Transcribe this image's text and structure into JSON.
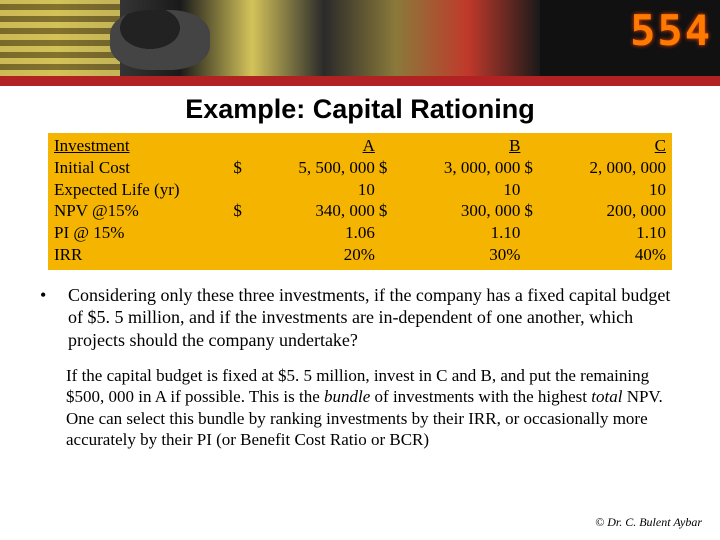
{
  "banner": {
    "digits": "554"
  },
  "title": "Example: Capital Rationing",
  "table": {
    "background_color": "#f4b400",
    "rows": [
      {
        "label": "Investment",
        "a_cur": "",
        "a": "A",
        "b_cur": "",
        "b": "B",
        "c_cur": "",
        "c": "C",
        "underline": true
      },
      {
        "label": "Initial Cost",
        "a_cur": "$",
        "a": "5, 500, 000",
        "b_cur": "$",
        "b": "3, 000, 000",
        "c_cur": "$",
        "c": "2, 000, 000",
        "underline": false
      },
      {
        "label": "Expected Life (yr)",
        "a_cur": "",
        "a": "10",
        "b_cur": "",
        "b": "10",
        "c_cur": "",
        "c": "10",
        "underline": false
      },
      {
        "label": "NPV @15%",
        "a_cur": "$",
        "a": "340, 000",
        "b_cur": "$",
        "b": "300, 000",
        "c_cur": "$",
        "c": "200, 000",
        "underline": false
      },
      {
        "label": "PI @ 15%",
        "a_cur": "",
        "a": "1.06",
        "b_cur": "",
        "b": "1.10",
        "c_cur": "",
        "c": "1.10",
        "underline": false
      },
      {
        "label": "IRR",
        "a_cur": "",
        "a": "20%",
        "b_cur": "",
        "b": "30%",
        "c_cur": "",
        "c": "40%",
        "underline": false
      }
    ]
  },
  "question": "Considering only these three investments, if the company has a fixed capital budget of $5. 5 million, and if the investments are in-dependent of one another, which projects should the company  undertake?",
  "answer_pre": "If the capital budget is fixed at $5. 5 million, invest in C and B, and put the remaining $500, 000 in A if possible.  This is the ",
  "answer_ital": "bundle",
  "answer_post": " of investments with the highest ",
  "answer_ital2": "total",
  "answer_post2": " NPV.  One can select this bundle by ranking investments by their IRR, or occasionally more accurately by their PI (or Benefit Cost Ratio or BCR)",
  "footer": "©   Dr. C. Bulent Aybar"
}
